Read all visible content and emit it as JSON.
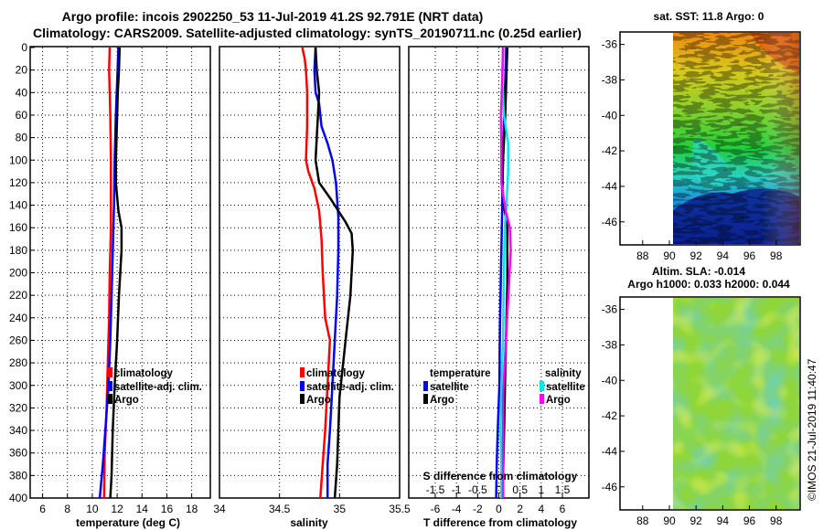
{
  "header": {
    "title_line1": "Argo profile: incois 2902250_53 11-Jul-2019 41.2S 92.791E (NRT data)",
    "title_line2": "Climatology: CARS2009. Satellite-adjusted climatology: synTS_20190711.nc (0.25d earlier)"
  },
  "watermark": "©IMOS 21-Jul-2019 11:40:47",
  "colors": {
    "climatology": "#ff0000",
    "satellite": "#0000ff",
    "argo": "#000000",
    "cyan": "#00e5ee",
    "magenta": "#ff00ff"
  },
  "chart_data": [
    {
      "type": "line",
      "id": "temperature",
      "xlabel": "temperature (deg C)",
      "xlim": [
        5,
        19.5
      ],
      "xticks": [
        6,
        8,
        10,
        12,
        14,
        16,
        18
      ],
      "ylim": [
        400,
        0
      ],
      "yticks": [
        0,
        20,
        40,
        60,
        80,
        100,
        120,
        140,
        160,
        180,
        200,
        220,
        240,
        260,
        280,
        300,
        320,
        340,
        360,
        380,
        400
      ],
      "legend": [
        "climatology",
        "satellite-adj. clim.",
        "Argo"
      ],
      "series": [
        {
          "name": "climatology",
          "color": "#ff0000",
          "width": 2.5,
          "points": [
            [
              11.4,
              0
            ],
            [
              11.35,
              20
            ],
            [
              11.4,
              40
            ],
            [
              11.45,
              60
            ],
            [
              11.5,
              100
            ],
            [
              11.5,
              160
            ],
            [
              11.4,
              200
            ],
            [
              11.35,
              240
            ],
            [
              11.25,
              280
            ],
            [
              11.15,
              320
            ],
            [
              11.0,
              360
            ],
            [
              10.95,
              400
            ]
          ]
        },
        {
          "name": "satellite-adj. clim.",
          "color": "#0000ff",
          "width": 2.5,
          "points": [
            [
              12.1,
              0
            ],
            [
              12.0,
              30
            ],
            [
              11.9,
              60
            ],
            [
              11.8,
              100
            ],
            [
              11.75,
              140
            ],
            [
              11.6,
              200
            ],
            [
              11.45,
              260
            ],
            [
              11.3,
              300
            ],
            [
              11.05,
              340
            ],
            [
              10.85,
              370
            ],
            [
              10.6,
              400
            ]
          ]
        },
        {
          "name": "Argo",
          "color": "#000000",
          "width": 2.5,
          "points": [
            [
              12.2,
              0
            ],
            [
              12.15,
              20
            ],
            [
              12.05,
              40
            ],
            [
              12.0,
              60
            ],
            [
              11.95,
              80
            ],
            [
              11.9,
              100
            ],
            [
              11.9,
              120
            ],
            [
              12.1,
              145
            ],
            [
              12.35,
              160
            ],
            [
              12.35,
              180
            ],
            [
              12.25,
              200
            ],
            [
              12.15,
              220
            ],
            [
              12.0,
              260
            ],
            [
              11.8,
              300
            ],
            [
              11.65,
              340
            ],
            [
              11.55,
              380
            ],
            [
              11.45,
              400
            ]
          ]
        }
      ]
    },
    {
      "type": "line",
      "id": "salinity",
      "xlabel": "salinity",
      "xlim": [
        34,
        35.5
      ],
      "xticks": [
        34,
        34.5,
        35,
        35.5
      ],
      "xtick_labels": [
        "34",
        "34.5",
        "35",
        "35.5"
      ],
      "ylim": [
        400,
        0
      ],
      "legend": [
        "climatology",
        "satellite-adj. clim.",
        "Argo"
      ],
      "series": [
        {
          "name": "climatology",
          "color": "#ff0000",
          "width": 2.5,
          "points": [
            [
              34.69,
              0
            ],
            [
              34.71,
              10
            ],
            [
              34.72,
              20
            ],
            [
              34.73,
              40
            ],
            [
              34.73,
              70
            ],
            [
              34.72,
              100
            ],
            [
              34.74,
              110
            ],
            [
              34.79,
              125
            ],
            [
              34.83,
              145
            ],
            [
              34.85,
              170
            ],
            [
              34.86,
              200
            ],
            [
              34.88,
              240
            ],
            [
              34.92,
              260
            ],
            [
              34.9,
              300
            ],
            [
              34.88,
              340
            ],
            [
              34.86,
              370
            ],
            [
              34.84,
              400
            ]
          ]
        },
        {
          "name": "satellite-adj. clim.",
          "color": "#0000ff",
          "width": 2.5,
          "points": [
            [
              34.8,
              0
            ],
            [
              34.79,
              20
            ],
            [
              34.8,
              40
            ],
            [
              34.83,
              50
            ],
            [
              34.85,
              70
            ],
            [
              34.9,
              85
            ],
            [
              34.94,
              100
            ],
            [
              34.97,
              120
            ],
            [
              34.99,
              150
            ],
            [
              34.99,
              180
            ],
            [
              34.98,
              220
            ],
            [
              34.96,
              260
            ],
            [
              34.94,
              300
            ],
            [
              34.92,
              340
            ],
            [
              34.9,
              370
            ],
            [
              34.9,
              400
            ]
          ]
        },
        {
          "name": "Argo",
          "color": "#000000",
          "width": 2.5,
          "points": [
            [
              34.8,
              0
            ],
            [
              34.81,
              20
            ],
            [
              34.83,
              40
            ],
            [
              34.82,
              60
            ],
            [
              34.81,
              80
            ],
            [
              34.8,
              100
            ],
            [
              34.83,
              120
            ],
            [
              34.93,
              135
            ],
            [
              35.05,
              155
            ],
            [
              35.1,
              165
            ],
            [
              35.11,
              180
            ],
            [
              35.09,
              220
            ],
            [
              35.06,
              250
            ],
            [
              35.03,
              280
            ],
            [
              35.0,
              310
            ],
            [
              34.99,
              340
            ],
            [
              34.98,
              370
            ],
            [
              34.96,
              400
            ]
          ]
        }
      ]
    },
    {
      "type": "line",
      "id": "difference",
      "xlabel": "T difference from climatology",
      "xlabel_top": "S difference from climatology",
      "xlim": [
        -8.5,
        8.5
      ],
      "xticks": [
        -6,
        -4,
        -2,
        0,
        2,
        4,
        6
      ],
      "xtick_labels": [
        "-6",
        "-4",
        "-2",
        "0",
        "2",
        "4",
        "6"
      ],
      "s_ticks": [
        -1.5,
        -1,
        -0.5,
        0,
        0.5,
        1,
        1.5
      ],
      "s_tick_labels": [
        "-1.5",
        "-1",
        "-0.5",
        "0",
        "0.5",
        "1",
        "1.5"
      ],
      "s_scale": 0.25,
      "ylim": [
        400,
        0
      ],
      "legend_groups": [
        {
          "heading": "temperature",
          "entries": [
            "satellite",
            "Argo"
          ]
        },
        {
          "heading": "salinity",
          "entries": [
            "satellite",
            "Argo"
          ]
        }
      ],
      "series": [
        {
          "name": "T satellite",
          "color": "#0000ff",
          "width": 2.5,
          "points": [
            [
              0.7,
              0
            ],
            [
              0.6,
              30
            ],
            [
              0.5,
              60
            ],
            [
              0.4,
              100
            ],
            [
              0.3,
              150
            ],
            [
              0.2,
              200
            ],
            [
              0.1,
              250
            ],
            [
              0.05,
              300
            ],
            [
              -0.1,
              340
            ],
            [
              -0.2,
              370
            ],
            [
              -0.25,
              400
            ]
          ]
        },
        {
          "name": "T Argo",
          "color": "#000000",
          "width": 2.5,
          "points": [
            [
              0.8,
              0
            ],
            [
              0.7,
              30
            ],
            [
              0.6,
              60
            ],
            [
              0.4,
              100
            ],
            [
              0.3,
              125
            ],
            [
              0.55,
              145
            ],
            [
              0.8,
              160
            ],
            [
              0.8,
              180
            ],
            [
              0.8,
              210
            ],
            [
              0.7,
              250
            ],
            [
              0.6,
              290
            ],
            [
              0.5,
              340
            ],
            [
              0.4,
              380
            ],
            [
              0.4,
              400
            ]
          ]
        },
        {
          "name": "S satellite",
          "color": "#00e5ee",
          "width": 2.5,
          "points": [
            [
              0.1,
              0
            ],
            [
              0.08,
              30
            ],
            [
              0.12,
              60
            ],
            [
              0.22,
              85
            ],
            [
              0.22,
              110
            ],
            [
              0.18,
              140
            ],
            [
              0.14,
              160
            ],
            [
              0.12,
              200
            ],
            [
              0.1,
              260
            ],
            [
              0.06,
              300
            ],
            [
              0.04,
              340
            ],
            [
              0.06,
              370
            ],
            [
              0.06,
              400
            ]
          ]
        },
        {
          "name": "S Argo",
          "color": "#ff00ff",
          "width": 2.5,
          "points": [
            [
              0.1,
              0
            ],
            [
              0.08,
              30
            ],
            [
              0.05,
              60
            ],
            [
              0.06,
              90
            ],
            [
              0.06,
              120
            ],
            [
              0.16,
              145
            ],
            [
              0.26,
              160
            ],
            [
              0.28,
              180
            ],
            [
              0.24,
              210
            ],
            [
              0.18,
              250
            ],
            [
              0.14,
              280
            ],
            [
              0.1,
              310
            ],
            [
              0.1,
              340
            ],
            [
              0.1,
              370
            ],
            [
              0.1,
              400
            ]
          ]
        }
      ]
    },
    {
      "type": "heatmap",
      "id": "sst_map",
      "title": "sat. SST: 11.8 Argo: 0",
      "xticks": [
        88,
        90,
        92,
        94,
        96,
        98
      ],
      "yticks": [
        -36,
        -38,
        -40,
        -42,
        -44,
        -46
      ],
      "xlim": [
        86.3,
        99.8
      ],
      "ylim": [
        -35.3,
        -47.3
      ],
      "data_xlim": [
        90,
        99.8
      ]
    },
    {
      "type": "heatmap",
      "id": "sla_map",
      "title": "Altim. SLA: -0.014",
      "subtitle": "Argo h1000: 0.033 h2000: 0.044",
      "xticks": [
        88,
        90,
        92,
        94,
        96,
        98
      ],
      "yticks": [
        -36,
        -38,
        -40,
        -42,
        -44,
        -46
      ],
      "xlim": [
        86.3,
        99.8
      ],
      "ylim": [
        -35.3,
        -47.3
      ],
      "data_xlim": [
        90,
        99.8
      ]
    }
  ]
}
